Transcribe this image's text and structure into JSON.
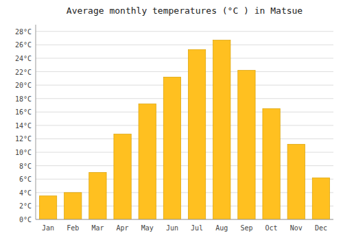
{
  "chart_data": {
    "type": "bar",
    "title": "Average monthly temperatures (°C ) in Matsue",
    "categories": [
      "Jan",
      "Feb",
      "Mar",
      "Apr",
      "May",
      "Jun",
      "Jul",
      "Aug",
      "Sep",
      "Oct",
      "Nov",
      "Dec"
    ],
    "values": [
      3.5,
      4.0,
      7.0,
      12.7,
      17.2,
      21.2,
      25.3,
      26.7,
      22.2,
      16.5,
      11.2,
      6.2
    ],
    "color": "#FFC020",
    "ylim": [
      0,
      29
    ],
    "yticks": [
      {
        "value": 0,
        "label": "0°C"
      },
      {
        "value": 2,
        "label": "2°C"
      },
      {
        "value": 4,
        "label": "4°C"
      },
      {
        "value": 6,
        "label": "6°C"
      },
      {
        "value": 8,
        "label": "8°C"
      },
      {
        "value": 10,
        "label": "10°C"
      },
      {
        "value": 12,
        "label": "12°C"
      },
      {
        "value": 14,
        "label": "14°C"
      },
      {
        "value": 16,
        "label": "16°C"
      },
      {
        "value": 18,
        "label": "18°C"
      },
      {
        "value": 20,
        "label": "20°C"
      },
      {
        "value": 22,
        "label": "22°C"
      },
      {
        "value": 24,
        "label": "24°C"
      },
      {
        "value": 26,
        "label": "26°C"
      },
      {
        "value": 28,
        "label": "28°C"
      }
    ],
    "grid": true
  }
}
